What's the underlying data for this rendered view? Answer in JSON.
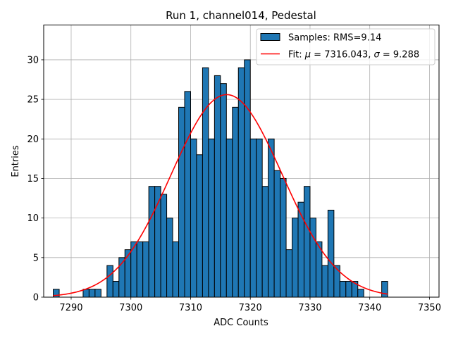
{
  "chart_data": {
    "type": "bar",
    "title": "Run 1, channel014, Pedestal",
    "xlabel": "ADC Counts",
    "ylabel": "Entries",
    "xlim": [
      7285.4,
      7351.6
    ],
    "ylim": [
      0,
      34.4
    ],
    "xticks": [
      7290,
      7300,
      7310,
      7320,
      7330,
      7340,
      7350
    ],
    "yticks": [
      0,
      5,
      10,
      15,
      20,
      25,
      30
    ],
    "grid": true,
    "legend_position": "top-right",
    "colors": {
      "bar_fill": "#1f77b4",
      "bar_edge": "#000000",
      "fit_line": "#ff0000",
      "grid": "#b0b0b0"
    },
    "histogram": {
      "name": "Samples: RMS=9.14",
      "bin_width": 1,
      "bins": [
        {
          "x": 7287,
          "count": 1
        },
        {
          "x": 7288,
          "count": 0
        },
        {
          "x": 7289,
          "count": 0
        },
        {
          "x": 7290,
          "count": 0
        },
        {
          "x": 7291,
          "count": 0
        },
        {
          "x": 7292,
          "count": 1
        },
        {
          "x": 7293,
          "count": 1
        },
        {
          "x": 7294,
          "count": 1
        },
        {
          "x": 7295,
          "count": 0
        },
        {
          "x": 7296,
          "count": 4
        },
        {
          "x": 7297,
          "count": 2
        },
        {
          "x": 7298,
          "count": 5
        },
        {
          "x": 7299,
          "count": 6
        },
        {
          "x": 7300,
          "count": 7
        },
        {
          "x": 7301,
          "count": 7
        },
        {
          "x": 7302,
          "count": 7
        },
        {
          "x": 7303,
          "count": 14
        },
        {
          "x": 7304,
          "count": 14
        },
        {
          "x": 7305,
          "count": 13
        },
        {
          "x": 7306,
          "count": 10
        },
        {
          "x": 7307,
          "count": 7
        },
        {
          "x": 7308,
          "count": 24
        },
        {
          "x": 7309,
          "count": 26
        },
        {
          "x": 7310,
          "count": 20
        },
        {
          "x": 7311,
          "count": 18
        },
        {
          "x": 7312,
          "count": 29
        },
        {
          "x": 7313,
          "count": 20
        },
        {
          "x": 7314,
          "count": 28
        },
        {
          "x": 7315,
          "count": 27
        },
        {
          "x": 7316,
          "count": 20
        },
        {
          "x": 7317,
          "count": 24
        },
        {
          "x": 7318,
          "count": 29
        },
        {
          "x": 7319,
          "count": 30
        },
        {
          "x": 7320,
          "count": 20
        },
        {
          "x": 7321,
          "count": 20
        },
        {
          "x": 7322,
          "count": 14
        },
        {
          "x": 7323,
          "count": 20
        },
        {
          "x": 7324,
          "count": 16
        },
        {
          "x": 7325,
          "count": 15
        },
        {
          "x": 7326,
          "count": 6
        },
        {
          "x": 7327,
          "count": 10
        },
        {
          "x": 7328,
          "count": 12
        },
        {
          "x": 7329,
          "count": 14
        },
        {
          "x": 7330,
          "count": 10
        },
        {
          "x": 7331,
          "count": 7
        },
        {
          "x": 7332,
          "count": 4
        },
        {
          "x": 7333,
          "count": 11
        },
        {
          "x": 7334,
          "count": 4
        },
        {
          "x": 7335,
          "count": 2
        },
        {
          "x": 7336,
          "count": 2
        },
        {
          "x": 7337,
          "count": 2
        },
        {
          "x": 7338,
          "count": 1
        },
        {
          "x": 7339,
          "count": 0
        },
        {
          "x": 7340,
          "count": 0
        },
        {
          "x": 7341,
          "count": 0
        },
        {
          "x": 7342,
          "count": 2
        }
      ]
    },
    "fit": {
      "name": "Fit: μ = 7316.043, σ = 9.288",
      "label_parts": [
        "Fit: ",
        "μ",
        " = 7316.043, ",
        "σ",
        " = 9.288"
      ],
      "type": "gaussian",
      "mu": 7316.043,
      "sigma": 9.288,
      "amplitude": 25.6,
      "x_range": [
        7287,
        7343
      ]
    }
  }
}
